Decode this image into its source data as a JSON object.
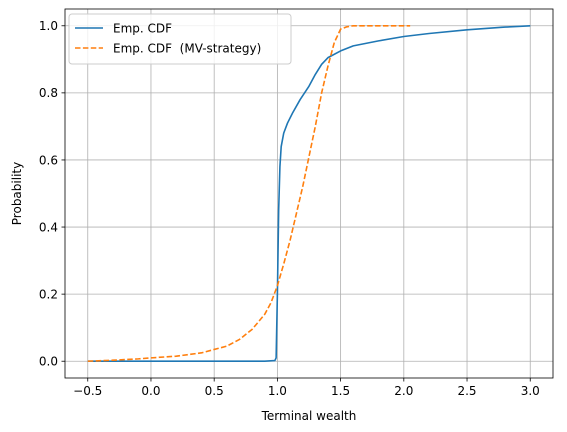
{
  "chart_data": {
    "type": "line",
    "title": "",
    "xlabel": "Terminal wealth",
    "ylabel": "Probability",
    "xlim": [
      -0.68,
      3.18
    ],
    "ylim": [
      -0.05,
      1.05
    ],
    "xticks": [
      -0.5,
      0.0,
      0.5,
      1.0,
      1.5,
      2.0,
      2.5,
      3.0
    ],
    "yticks": [
      0.0,
      0.2,
      0.4,
      0.6,
      0.8,
      1.0
    ],
    "xtick_labels": [
      "−0.5",
      "0.0",
      "0.5",
      "1.0",
      "1.5",
      "2.0",
      "2.5",
      "3.0"
    ],
    "ytick_labels": [
      "0.0",
      "0.2",
      "0.4",
      "0.6",
      "0.8",
      "1.0"
    ],
    "grid": true,
    "legend_position": "top-left",
    "series": [
      {
        "name": "Emp. CDF",
        "color": "#1f77b4",
        "style": "solid",
        "x": [
          -0.5,
          0.0,
          0.5,
          0.9,
          0.98,
          0.99,
          1.0,
          1.01,
          1.02,
          1.03,
          1.05,
          1.08,
          1.12,
          1.18,
          1.25,
          1.3,
          1.35,
          1.4,
          1.5,
          1.6,
          1.8,
          2.0,
          2.2,
          2.5,
          2.8,
          3.0
        ],
        "y": [
          0.0,
          0.0,
          0.0,
          0.0,
          0.002,
          0.01,
          0.2,
          0.45,
          0.58,
          0.64,
          0.68,
          0.71,
          0.74,
          0.78,
          0.82,
          0.855,
          0.885,
          0.905,
          0.925,
          0.94,
          0.955,
          0.968,
          0.977,
          0.988,
          0.996,
          1.0
        ]
      },
      {
        "name": "Emp. CDF  (MV-strategy)",
        "color": "#ff7f0e",
        "style": "dashed",
        "x": [
          -0.5,
          -0.3,
          -0.1,
          0.0,
          0.2,
          0.4,
          0.6,
          0.7,
          0.8,
          0.9,
          0.95,
          1.0,
          1.05,
          1.1,
          1.15,
          1.2,
          1.25,
          1.3,
          1.35,
          1.4,
          1.45,
          1.5,
          1.55,
          1.6,
          1.7,
          1.8,
          2.0,
          2.05
        ],
        "y": [
          0.0,
          0.003,
          0.007,
          0.01,
          0.015,
          0.025,
          0.045,
          0.065,
          0.095,
          0.14,
          0.175,
          0.225,
          0.29,
          0.36,
          0.44,
          0.52,
          0.61,
          0.7,
          0.8,
          0.88,
          0.95,
          0.99,
          0.997,
          1.0,
          1.0,
          1.0,
          1.0,
          1.0
        ]
      }
    ]
  }
}
